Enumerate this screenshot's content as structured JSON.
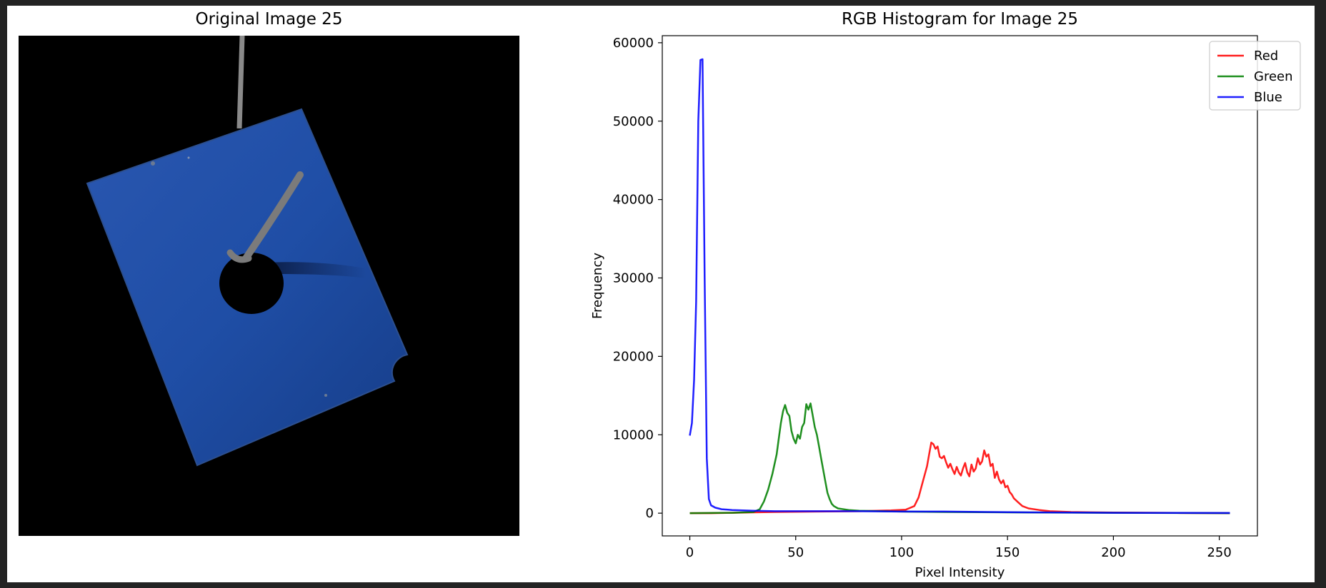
{
  "image_panel": {
    "title": "Original Image 25"
  },
  "chart_data": {
    "type": "line",
    "title": "RGB Histogram for Image 25",
    "xlabel": "Pixel Intensity",
    "ylabel": "Frequency",
    "xlim": [
      -13,
      268
    ],
    "ylim": [
      -2900,
      60900
    ],
    "xticks": [
      0,
      50,
      100,
      150,
      200,
      250
    ],
    "yticks": [
      0,
      10000,
      20000,
      30000,
      40000,
      50000,
      60000
    ],
    "legend_position": "top-right",
    "grid": false,
    "series": [
      {
        "name": "Red",
        "color": "#ff0000",
        "points": [
          [
            0,
            0
          ],
          [
            10,
            0
          ],
          [
            20,
            50
          ],
          [
            30,
            100
          ],
          [
            40,
            150
          ],
          [
            60,
            200
          ],
          [
            80,
            250
          ],
          [
            95,
            350
          ],
          [
            102,
            450
          ],
          [
            106,
            900
          ],
          [
            108,
            2000
          ],
          [
            110,
            4000
          ],
          [
            112,
            6000
          ],
          [
            113,
            7500
          ],
          [
            114,
            9000
          ],
          [
            115,
            8800
          ],
          [
            116,
            8200
          ],
          [
            117,
            8500
          ],
          [
            118,
            7200
          ],
          [
            119,
            7000
          ],
          [
            120,
            7300
          ],
          [
            121,
            6500
          ],
          [
            122,
            5800
          ],
          [
            123,
            6300
          ],
          [
            124,
            5600
          ],
          [
            125,
            5000
          ],
          [
            126,
            5900
          ],
          [
            127,
            5200
          ],
          [
            128,
            4800
          ],
          [
            129,
            5700
          ],
          [
            130,
            6400
          ],
          [
            131,
            5200
          ],
          [
            132,
            4700
          ],
          [
            133,
            6200
          ],
          [
            134,
            5300
          ],
          [
            135,
            5700
          ],
          [
            136,
            7000
          ],
          [
            137,
            6200
          ],
          [
            138,
            6600
          ],
          [
            139,
            8000
          ],
          [
            140,
            7200
          ],
          [
            141,
            7500
          ],
          [
            142,
            6000
          ],
          [
            143,
            6300
          ],
          [
            144,
            4500
          ],
          [
            145,
            5300
          ],
          [
            146,
            4300
          ],
          [
            147,
            3800
          ],
          [
            148,
            4200
          ],
          [
            149,
            3300
          ],
          [
            150,
            3500
          ],
          [
            151,
            2700
          ],
          [
            152,
            2400
          ],
          [
            153,
            1900
          ],
          [
            155,
            1400
          ],
          [
            157,
            900
          ],
          [
            160,
            600
          ],
          [
            165,
            400
          ],
          [
            170,
            250
          ],
          [
            180,
            150
          ],
          [
            200,
            80
          ],
          [
            230,
            30
          ],
          [
            255,
            0
          ]
        ]
      },
      {
        "name": "Green",
        "color": "#008000",
        "points": [
          [
            0,
            0
          ],
          [
            20,
            50
          ],
          [
            30,
            150
          ],
          [
            33,
            500
          ],
          [
            35,
            1500
          ],
          [
            37,
            3000
          ],
          [
            39,
            5000
          ],
          [
            41,
            7500
          ],
          [
            42,
            9500
          ],
          [
            43,
            11500
          ],
          [
            44,
            13000
          ],
          [
            45,
            13800
          ],
          [
            46,
            12800
          ],
          [
            47,
            12400
          ],
          [
            48,
            10500
          ],
          [
            49,
            9500
          ],
          [
            50,
            8900
          ],
          [
            51,
            10000
          ],
          [
            52,
            9500
          ],
          [
            53,
            11000
          ],
          [
            54,
            11500
          ],
          [
            55,
            13900
          ],
          [
            56,
            13200
          ],
          [
            57,
            14000
          ],
          [
            58,
            12500
          ],
          [
            59,
            11000
          ],
          [
            60,
            10000
          ],
          [
            61,
            8500
          ],
          [
            62,
            7000
          ],
          [
            63,
            5500
          ],
          [
            64,
            4000
          ],
          [
            65,
            2600
          ],
          [
            66,
            1800
          ],
          [
            67,
            1200
          ],
          [
            68,
            900
          ],
          [
            70,
            600
          ],
          [
            75,
            400
          ],
          [
            80,
            300
          ],
          [
            90,
            250
          ],
          [
            100,
            200
          ],
          [
            120,
            150
          ],
          [
            150,
            100
          ],
          [
            200,
            50
          ],
          [
            255,
            0
          ]
        ]
      },
      {
        "name": "Blue",
        "color": "#0000ff",
        "points": [
          [
            0,
            9900
          ],
          [
            1,
            11500
          ],
          [
            2,
            17000
          ],
          [
            3,
            27000
          ],
          [
            4,
            50000
          ],
          [
            5,
            57800
          ],
          [
            6,
            57900
          ],
          [
            7,
            30000
          ],
          [
            8,
            7000
          ],
          [
            9,
            1800
          ],
          [
            10,
            1000
          ],
          [
            12,
            700
          ],
          [
            15,
            500
          ],
          [
            20,
            400
          ],
          [
            30,
            300
          ],
          [
            40,
            250
          ],
          [
            60,
            250
          ],
          [
            80,
            250
          ],
          [
            100,
            200
          ],
          [
            120,
            200
          ],
          [
            140,
            150
          ],
          [
            160,
            100
          ],
          [
            180,
            80
          ],
          [
            200,
            50
          ],
          [
            230,
            30
          ],
          [
            255,
            20
          ]
        ]
      }
    ]
  }
}
